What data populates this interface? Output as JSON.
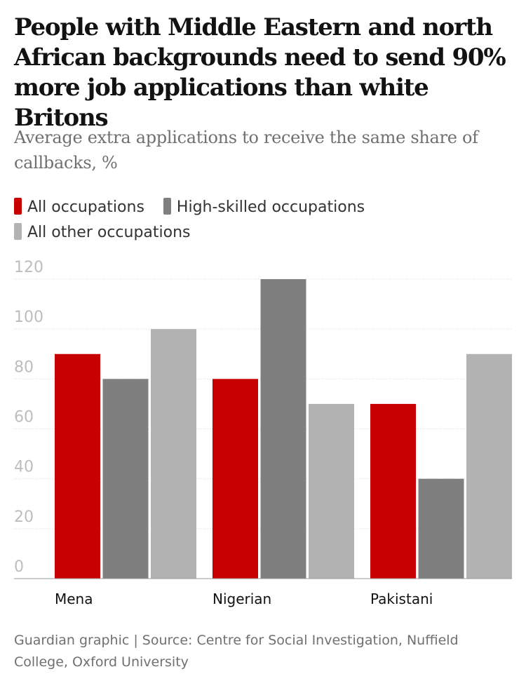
{
  "chart_data": {
    "type": "bar",
    "title": "People with Middle Eastern and north African backgrounds need to send 90% more job applications than white Britons",
    "subtitle": "Average extra applications to receive the same share of callbacks, %",
    "categories": [
      "Mena",
      "Nigerian",
      "Pakistani"
    ],
    "series": [
      {
        "name": "All occupations",
        "values": [
          90,
          80,
          70
        ],
        "color": "#c70000"
      },
      {
        "name": "High-skilled occupations",
        "values": [
          80,
          120,
          40
        ],
        "color": "#7f7f7f"
      },
      {
        "name": "All other occupations",
        "values": [
          100,
          70,
          90
        ],
        "color": "#b3b3b4"
      }
    ],
    "yticks": [
      "0",
      "20",
      "40",
      "60",
      "80",
      "100",
      "120"
    ],
    "ylim": [
      0,
      120
    ],
    "grid": true,
    "legend": "top",
    "xlabel": "",
    "ylabel": ""
  },
  "source": "Guardian graphic | Source: Centre for Social Investigation, Nuffield College, Oxford University"
}
